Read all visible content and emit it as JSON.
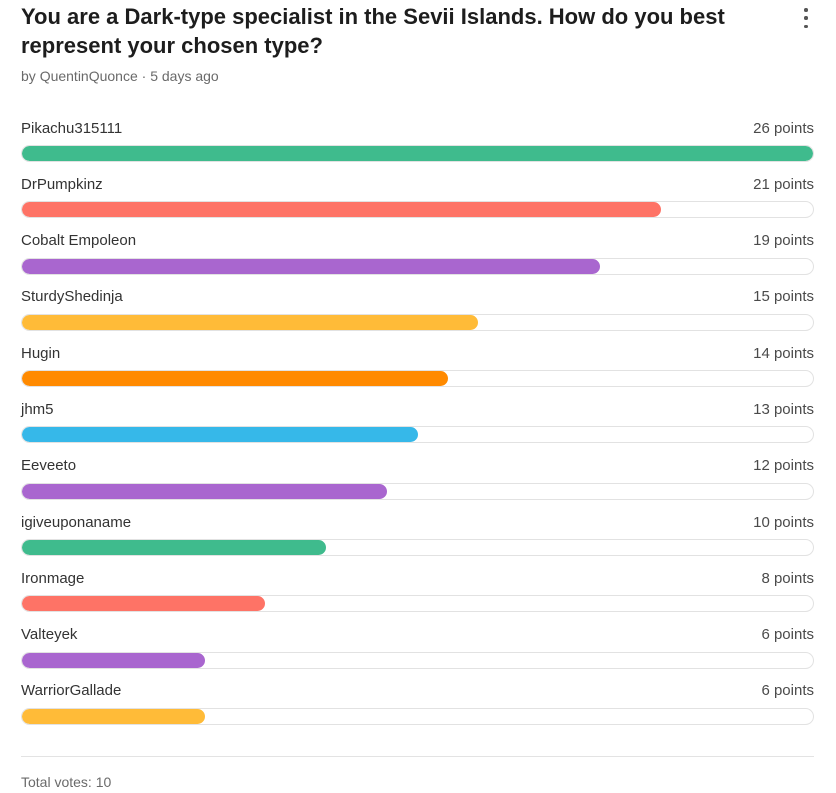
{
  "poll": {
    "title": "You are a Dark-type specialist in the Sevii Islands. How do you best represent your chosen type?",
    "author_prefix": "by",
    "author": "QuentinQuonce",
    "separator": "·",
    "time": "5 days ago",
    "max_points": 26,
    "options": [
      {
        "name": "Pikachu315111",
        "points": 26,
        "points_label": "26 points",
        "color": "#3fbb8d"
      },
      {
        "name": "DrPumpkinz",
        "points": 21,
        "points_label": "21 points",
        "color": "#fe7366"
      },
      {
        "name": "Cobalt Empoleon",
        "points": 19,
        "points_label": "19 points",
        "color": "#a966cf"
      },
      {
        "name": "SturdyShedinja",
        "points": 15,
        "points_label": "15 points",
        "color": "#ffbb38"
      },
      {
        "name": "Hugin",
        "points": 14,
        "points_label": "14 points",
        "color": "#ff8a00"
      },
      {
        "name": "jhm5",
        "points": 13,
        "points_label": "13 points",
        "color": "#36b8e9"
      },
      {
        "name": "Eeveeto",
        "points": 12,
        "points_label": "12 points",
        "color": "#a966cf"
      },
      {
        "name": "igiveuponaname",
        "points": 10,
        "points_label": "10 points",
        "color": "#3fbb8d"
      },
      {
        "name": "Ironmage",
        "points": 8,
        "points_label": "8 points",
        "color": "#fe7366"
      },
      {
        "name": "Valteyek",
        "points": 6,
        "points_label": "6 points",
        "color": "#a966cf"
      },
      {
        "name": "WarriorGallade",
        "points": 6,
        "points_label": "6 points",
        "color": "#ffbb38"
      }
    ],
    "total_votes_label": "Total votes: 10"
  },
  "icons": {
    "menu": "more-vertical-icon"
  }
}
